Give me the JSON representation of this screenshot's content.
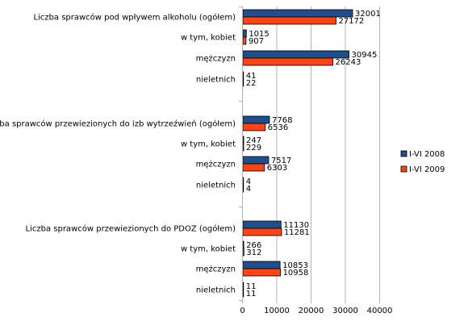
{
  "chart_data": {
    "type": "bar",
    "orientation": "horizontal",
    "categories": [
      "Liczba sprawców pod wpływem alkoholu (ogółem)",
      "w tym, kobiet",
      "mężczyzn",
      "nieletnich",
      "Liczba sprawców przewiezionych do izb wytrzeźwień (ogółem)",
      "w tym, kobiet",
      "mężczyzn",
      "nieletnich",
      "Liczba sprawców przewiezionych do PDOZ (ogółem)",
      "w tym, kobiet",
      "mężczyzn",
      "nieletnich"
    ],
    "series": [
      {
        "name": "I-VI 2008",
        "color": "#1f4e8c",
        "values": [
          32001,
          1015,
          30945,
          41,
          7768,
          247,
          7517,
          4,
          11130,
          266,
          10853,
          11
        ]
      },
      {
        "name": "I-VI 2009",
        "color": "#ff4411",
        "values": [
          27172,
          907,
          26243,
          22,
          6536,
          229,
          6303,
          4,
          11281,
          312,
          10958,
          11
        ]
      }
    ],
    "xlim": [
      0,
      40000
    ],
    "xticks": [
      "0",
      "10000",
      "20000",
      "30000",
      "40000"
    ],
    "grid": true,
    "legend": "right"
  }
}
